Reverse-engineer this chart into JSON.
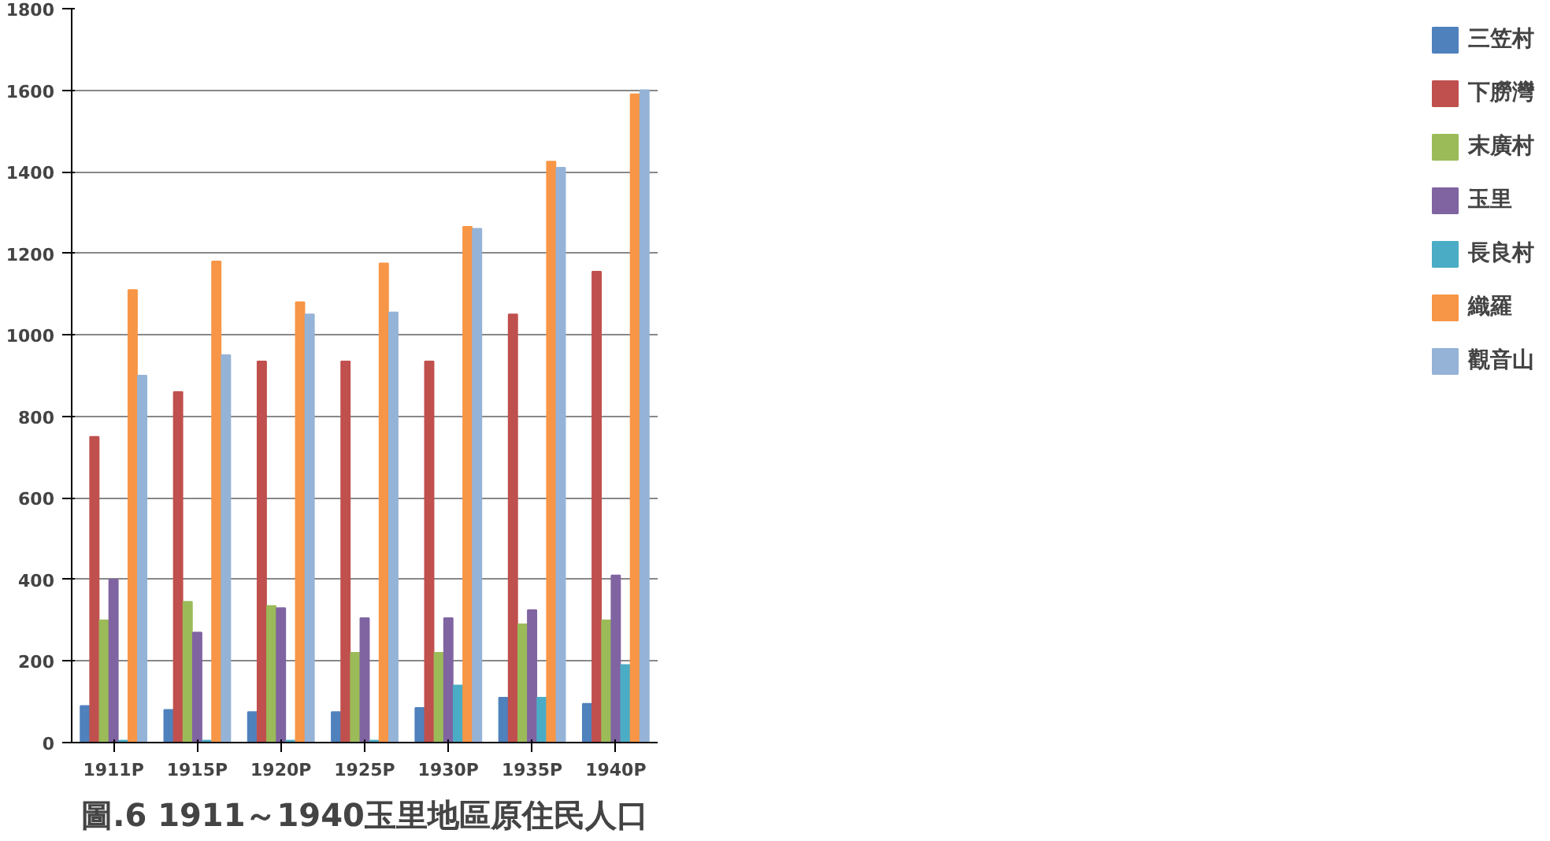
{
  "chart_data": {
    "type": "bar",
    "title": "圖.6 1911～1940玉里地區原住民人口",
    "categories": [
      "1911P",
      "1915P",
      "1920P",
      "1925P",
      "1930P",
      "1935P",
      "1940P"
    ],
    "series": [
      {
        "name": "三笠村",
        "color": "#4f81bd",
        "values": [
          90,
          80,
          75,
          75,
          85,
          110,
          95
        ]
      },
      {
        "name": "下朥灣",
        "color": "#c0504d",
        "values": [
          750,
          860,
          935,
          935,
          935,
          1050,
          1155
        ]
      },
      {
        "name": "末廣村",
        "color": "#9bbb59",
        "values": [
          300,
          345,
          335,
          220,
          220,
          290,
          300
        ]
      },
      {
        "name": "玉里",
        "color": "#8064a2",
        "values": [
          400,
          270,
          330,
          305,
          305,
          325,
          410
        ]
      },
      {
        "name": "長良村",
        "color": "#4bacc6",
        "values": [
          5,
          5,
          5,
          5,
          140,
          110,
          190
        ]
      },
      {
        "name": "織羅",
        "color": "#f79646",
        "values": [
          1110,
          1180,
          1080,
          1175,
          1265,
          1425,
          1590
        ]
      },
      {
        "name": "觀音山",
        "color": "#95b3d7",
        "values": [
          900,
          950,
          1050,
          1055,
          1260,
          1410,
          1600
        ]
      }
    ],
    "ylim": [
      0,
      1800
    ],
    "yticks": [
      0,
      200,
      400,
      600,
      800,
      1000,
      1200,
      1400,
      1600,
      1800
    ],
    "grid": "y",
    "legend": "right"
  }
}
